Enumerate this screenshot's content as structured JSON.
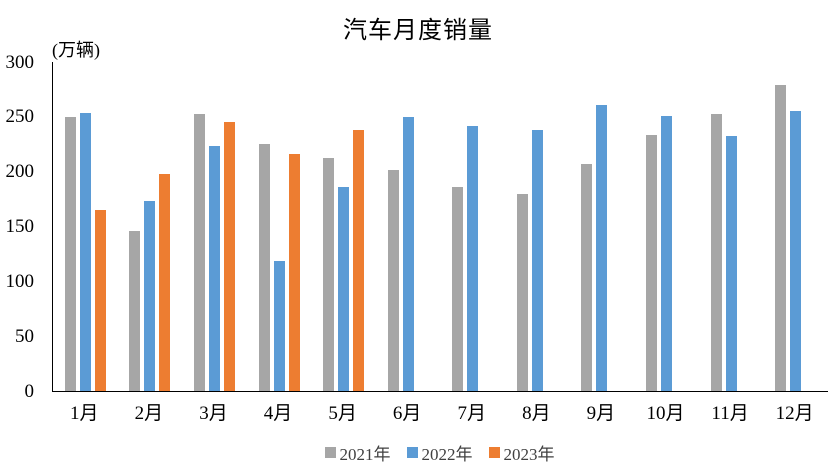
{
  "chart_data": {
    "type": "bar",
    "title": "汽车月度销量",
    "ylabel": "(万辆)",
    "xlabel": "",
    "categories": [
      "1月",
      "2月",
      "3月",
      "4月",
      "5月",
      "6月",
      "7月",
      "8月",
      "9月",
      "10月",
      "11月",
      "12月"
    ],
    "series": [
      {
        "name": "2021年",
        "color": "#A6A6A6",
        "values": [
          250.3,
          145.5,
          252.6,
          225.2,
          212.8,
          201.5,
          186.4,
          179.9,
          206.7,
          233.3,
          252.2,
          278.6
        ]
      },
      {
        "name": "2022年",
        "color": "#5B9BD5",
        "values": [
          253.1,
          173.7,
          223.4,
          118.1,
          186.2,
          250.2,
          242.0,
          238.3,
          261.0,
          250.5,
          232.8,
          255.6
        ]
      },
      {
        "name": "2023年",
        "color": "#ED7D31",
        "values": [
          164.9,
          197.6,
          245.1,
          215.9,
          238.2,
          null,
          null,
          null,
          null,
          null,
          null,
          null
        ]
      }
    ],
    "ylim": [
      0,
      300
    ],
    "y_ticks": [
      300,
      250,
      200,
      150,
      100,
      50,
      0
    ],
    "grid": false,
    "legend_position": "bottom",
    "axis_color": "#000000"
  }
}
